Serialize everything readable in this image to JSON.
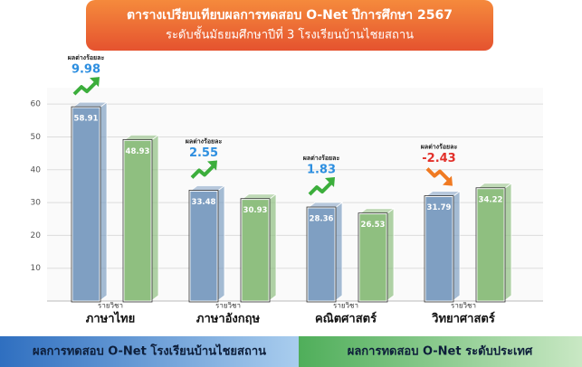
{
  "chart_data": {
    "type": "bar",
    "title": "ตารางเปรียบเทียบผลการทดสอบ O-Net ปีการศึกษา 2567",
    "subtitle": "ระดับชั้นมัธยมศึกษาปีที่ 3 โรงเรียนบ้านไชยสถาน",
    "category_prefix": "รายวิชา",
    "categories": [
      "ภาษาไทย",
      "ภาษาอังกฤษ",
      "คณิตศาสตร์",
      "วิทยาศาสตร์"
    ],
    "series": [
      {
        "name": "ผลการทดสอบ O-Net โรงเรียนบ้านไชยสถาน",
        "color": "#7f9fc2",
        "values": [
          58.91,
          33.48,
          28.36,
          31.79
        ]
      },
      {
        "name": "ผลการทดสอบ O-Net ระดับประเทศ",
        "color": "#8fbf80",
        "values": [
          48.93,
          30.93,
          26.53,
          34.22
        ]
      }
    ],
    "difference": {
      "label": "ผลต่างร้อยละ",
      "values": [
        9.98,
        2.55,
        1.83,
        -2.43
      ],
      "positive_color": "#2e8fe0",
      "negative_color": "#e2302a"
    },
    "ylim": [
      0,
      65
    ],
    "yticks": [
      10,
      20,
      30,
      40,
      50,
      60
    ],
    "grid": true
  }
}
